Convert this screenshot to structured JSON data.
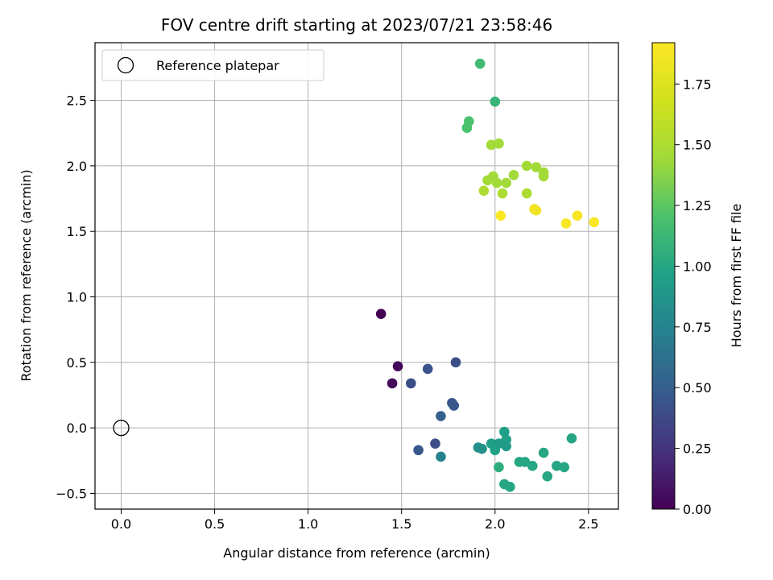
{
  "chart_data": {
    "type": "scatter",
    "title": "FOV centre drift starting at 2023/07/21 23:58:46",
    "xlabel": "Angular distance from reference (arcmin)",
    "ylabel": "Rotation from reference (arcmin)",
    "xlim": [
      -0.14,
      2.66
    ],
    "ylim": [
      -0.62,
      2.94
    ],
    "xticks": [
      0.0,
      0.5,
      1.0,
      1.5,
      2.0,
      2.5
    ],
    "xtick_labels": [
      "0.0",
      "0.5",
      "1.0",
      "1.5",
      "2.0",
      "2.5"
    ],
    "yticks": [
      -0.5,
      0.0,
      0.5,
      1.0,
      1.5,
      2.0,
      2.5
    ],
    "ytick_labels": [
      "−0.5",
      "0.0",
      "0.5",
      "1.0",
      "1.5",
      "2.0",
      "2.5"
    ],
    "grid": true,
    "legend": {
      "placement": "top-left",
      "entries": [
        {
          "label": "Reference platepar",
          "marker": "open-circle",
          "x": 0.0,
          "y": 0.0
        }
      ]
    },
    "colorbar": {
      "label": "Hours from first FF file",
      "colormap": "viridis",
      "range": [
        0.0,
        1.92
      ],
      "ticks": [
        0.0,
        0.25,
        0.5,
        0.75,
        1.0,
        1.25,
        1.5,
        1.75
      ],
      "tick_labels": [
        "0.00",
        "0.25",
        "0.50",
        "0.75",
        "1.00",
        "1.25",
        "1.50",
        "1.75"
      ]
    },
    "points": [
      {
        "x": 1.39,
        "y": 0.87,
        "t": 0.0
      },
      {
        "x": 1.48,
        "y": 0.47,
        "t": 0.03
      },
      {
        "x": 1.45,
        "y": 0.34,
        "t": 0.05
      },
      {
        "x": 1.55,
        "y": 0.34,
        "t": 0.4
      },
      {
        "x": 1.64,
        "y": 0.45,
        "t": 0.43
      },
      {
        "x": 1.79,
        "y": 0.5,
        "t": 0.4
      },
      {
        "x": 1.77,
        "y": 0.19,
        "t": 0.45
      },
      {
        "x": 1.78,
        "y": 0.17,
        "t": 0.45
      },
      {
        "x": 1.71,
        "y": 0.09,
        "t": 0.5
      },
      {
        "x": 1.59,
        "y": -0.17,
        "t": 0.45
      },
      {
        "x": 1.68,
        "y": -0.12,
        "t": 0.4
      },
      {
        "x": 1.71,
        "y": -0.22,
        "t": 0.75
      },
      {
        "x": 1.91,
        "y": -0.15,
        "t": 0.85
      },
      {
        "x": 1.93,
        "y": -0.16,
        "t": 0.85
      },
      {
        "x": 1.98,
        "y": -0.12,
        "t": 0.95
      },
      {
        "x": 2.0,
        "y": -0.17,
        "t": 0.95
      },
      {
        "x": 2.02,
        "y": -0.12,
        "t": 0.9
      },
      {
        "x": 2.05,
        "y": -0.03,
        "t": 0.95
      },
      {
        "x": 2.06,
        "y": -0.09,
        "t": 0.95
      },
      {
        "x": 2.06,
        "y": -0.14,
        "t": 0.92
      },
      {
        "x": 2.02,
        "y": -0.3,
        "t": 1.05
      },
      {
        "x": 2.05,
        "y": -0.43,
        "t": 1.0
      },
      {
        "x": 2.08,
        "y": -0.45,
        "t": 1.0
      },
      {
        "x": 2.13,
        "y": -0.26,
        "t": 1.0
      },
      {
        "x": 2.16,
        "y": -0.26,
        "t": 1.0
      },
      {
        "x": 2.2,
        "y": -0.29,
        "t": 1.0
      },
      {
        "x": 2.26,
        "y": -0.19,
        "t": 1.0
      },
      {
        "x": 2.28,
        "y": -0.37,
        "t": 1.0
      },
      {
        "x": 2.33,
        "y": -0.29,
        "t": 1.0
      },
      {
        "x": 2.37,
        "y": -0.3,
        "t": 1.0
      },
      {
        "x": 2.41,
        "y": -0.08,
        "t": 1.0
      },
      {
        "x": 1.92,
        "y": 2.78,
        "t": 1.15
      },
      {
        "x": 2.0,
        "y": 2.49,
        "t": 1.1
      },
      {
        "x": 1.86,
        "y": 2.34,
        "t": 1.2
      },
      {
        "x": 1.85,
        "y": 2.29,
        "t": 1.2
      },
      {
        "x": 1.98,
        "y": 2.16,
        "t": 1.45
      },
      {
        "x": 2.02,
        "y": 2.17,
        "t": 1.45
      },
      {
        "x": 2.17,
        "y": 2.0,
        "t": 1.45
      },
      {
        "x": 2.22,
        "y": 1.99,
        "t": 1.45
      },
      {
        "x": 2.26,
        "y": 1.95,
        "t": 1.45
      },
      {
        "x": 2.26,
        "y": 1.92,
        "t": 1.45
      },
      {
        "x": 2.1,
        "y": 1.93,
        "t": 1.45
      },
      {
        "x": 1.96,
        "y": 1.89,
        "t": 1.45
      },
      {
        "x": 1.99,
        "y": 1.92,
        "t": 1.45
      },
      {
        "x": 2.01,
        "y": 1.87,
        "t": 1.45
      },
      {
        "x": 2.06,
        "y": 1.87,
        "t": 1.45
      },
      {
        "x": 1.94,
        "y": 1.81,
        "t": 1.5
      },
      {
        "x": 2.04,
        "y": 1.79,
        "t": 1.5
      },
      {
        "x": 2.17,
        "y": 1.79,
        "t": 1.5
      },
      {
        "x": 2.03,
        "y": 1.62,
        "t": 1.9
      },
      {
        "x": 2.21,
        "y": 1.67,
        "t": 1.85
      },
      {
        "x": 2.22,
        "y": 1.66,
        "t": 1.85
      },
      {
        "x": 2.38,
        "y": 1.56,
        "t": 1.88
      },
      {
        "x": 2.44,
        "y": 1.62,
        "t": 1.88
      },
      {
        "x": 2.53,
        "y": 1.57,
        "t": 1.9
      }
    ]
  }
}
